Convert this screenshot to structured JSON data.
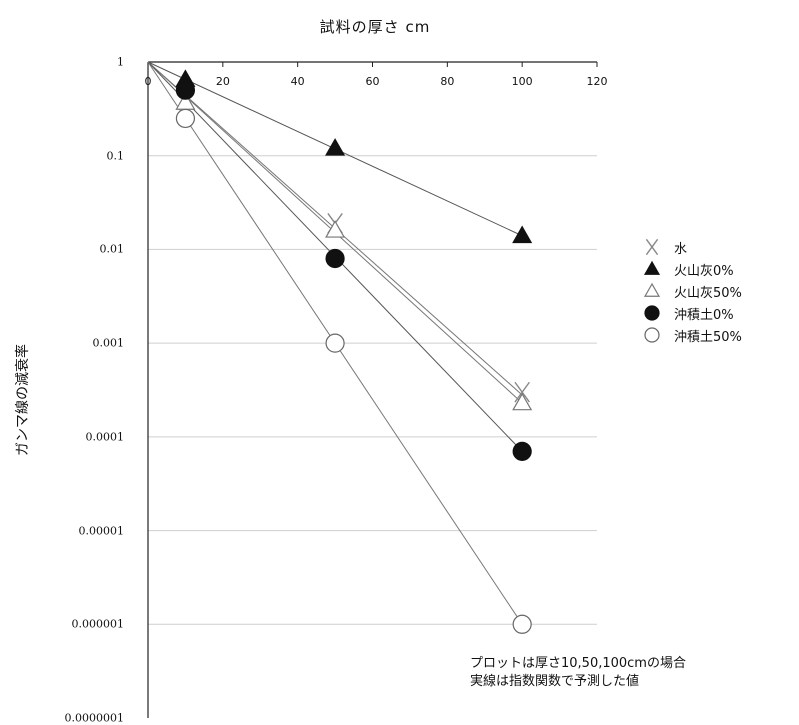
{
  "chart_data": {
    "type": "line",
    "title": "試料の厚さ cm",
    "xlabel": "試料の厚さ cm",
    "ylabel": "ガンマ線の減衰率",
    "xlim": [
      0,
      120
    ],
    "ylim": [
      1e-07,
      1
    ],
    "yscale": "log",
    "x_ticks": [
      "0",
      "20",
      "40",
      "60",
      "80",
      "100",
      "120"
    ],
    "y_ticks": [
      "1",
      "0.1",
      "0.01",
      "0.001",
      "0.0001",
      "0.00001",
      "0.000001",
      "0.0000001"
    ],
    "grid": "horizontal",
    "legend_position": "right",
    "x": [
      0,
      10,
      50,
      100
    ],
    "series": [
      {
        "name": "水",
        "marker": "x",
        "color": "#888888",
        "fit_end": 0.00028,
        "values": [
          1,
          0.42,
          0.019,
          0.0003
        ]
      },
      {
        "name": "火山灰0%",
        "marker": "filled-triangle",
        "color": "#111111",
        "fit_end": 0.014,
        "values": [
          1,
          0.65,
          0.12,
          0.014
        ]
      },
      {
        "name": "火山灰50%",
        "marker": "open-triangle",
        "color": "#888888",
        "fit_end": 0.00023,
        "values": [
          1,
          0.37,
          0.016,
          0.00023
        ]
      },
      {
        "name": "沖積土0%",
        "marker": "filled-circle",
        "color": "#111111",
        "fit_end": 7e-05,
        "values": [
          1,
          0.5,
          0.008,
          7e-05
        ]
      },
      {
        "name": "沖積土50%",
        "marker": "open-circle",
        "color": "#888888",
        "fit_end": 1e-06,
        "values": [
          1,
          0.25,
          0.001,
          1e-06
        ]
      }
    ],
    "annotation": [
      "プロットは厚さ10,50,100cmの場合",
      "実線は指数関数で予測した値"
    ]
  }
}
